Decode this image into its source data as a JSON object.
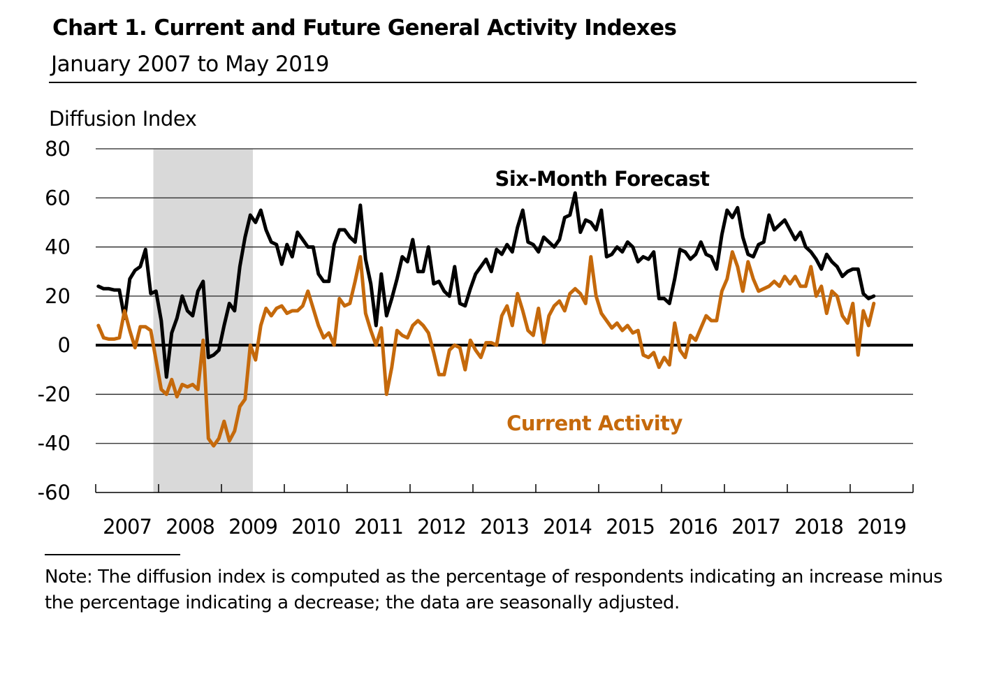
{
  "chart_data": {
    "type": "line",
    "title": "Chart 1. Current and Future General Activity Indexes",
    "subtitle": "January 2007 to May 2019",
    "ylabel": "Diffusion Index",
    "xlabel": "",
    "ylim": [
      -60,
      80
    ],
    "yticks": [
      "80",
      "60",
      "40",
      "20",
      "0",
      "-20",
      "-40",
      "-60"
    ],
    "ytick_values": [
      80,
      60,
      40,
      20,
      0,
      -20,
      -40,
      -60
    ],
    "xticks": [
      "2007",
      "2008",
      "2009",
      "2010",
      "2011",
      "2012",
      "2013",
      "2014",
      "2015",
      "2016",
      "2017",
      "2018",
      "2019"
    ],
    "x_start": "2007-01",
    "x_end": "2019-05",
    "frequency": "monthly",
    "grid": true,
    "zero_line": true,
    "recession_shading": {
      "start": "2007-12",
      "end": "2009-06",
      "color": "#d9d9d9"
    },
    "series": [
      {
        "name": "Six-Month Forecast",
        "color": "#000000",
        "values": [
          24,
          23,
          23,
          22.5,
          22.5,
          11,
          27,
          30.5,
          32,
          39,
          21,
          22,
          10,
          -13,
          5,
          11,
          20,
          14,
          12,
          22,
          26,
          -5,
          -4,
          -2,
          8,
          17,
          14,
          32,
          44,
          53,
          50,
          55,
          47,
          42,
          41,
          33,
          41,
          36,
          46,
          43,
          40,
          40,
          29,
          26,
          26,
          41,
          47,
          47,
          44,
          42,
          57,
          35,
          25,
          8,
          29,
          12,
          19,
          27,
          36,
          34,
          43,
          30,
          30,
          40,
          25,
          26,
          22,
          20,
          32,
          17,
          16,
          23,
          29,
          32,
          35,
          30,
          39,
          37,
          41,
          38,
          48,
          55,
          42,
          41,
          38,
          44,
          42,
          40,
          43,
          52,
          53,
          62,
          46,
          51,
          50,
          47,
          55,
          36,
          37,
          40,
          38,
          42,
          40,
          34,
          36,
          35,
          38,
          19,
          19,
          17,
          27,
          39,
          38,
          35,
          37,
          42,
          37,
          36,
          31,
          45,
          55,
          52,
          56,
          44,
          37,
          36,
          41,
          42,
          53,
          47,
          49,
          51,
          47,
          43,
          46,
          40,
          38,
          35,
          31,
          37,
          34,
          32,
          28,
          30,
          31,
          31,
          21,
          19,
          20
        ]
      },
      {
        "name": "Current Activity",
        "color": "#c5690b",
        "values": [
          8,
          3,
          2.5,
          2.5,
          3,
          14,
          6,
          -1,
          7.5,
          7.5,
          6,
          -6,
          -18,
          -20,
          -14,
          -21,
          -16,
          -17,
          -16,
          -18,
          2,
          -38,
          -41,
          -38,
          -31,
          -39,
          -35,
          -25,
          -22,
          0,
          -6,
          8,
          15,
          12,
          15,
          16,
          13,
          14,
          14,
          16,
          22,
          15,
          8,
          3,
          5,
          0,
          19,
          16,
          17,
          26,
          36,
          13,
          6,
          0,
          7,
          -20,
          -9,
          6,
          4,
          3,
          8,
          10,
          8,
          5,
          -3,
          -12,
          -12,
          -2,
          0,
          -1,
          -10,
          2,
          -2,
          -5,
          1,
          1,
          0,
          12,
          16,
          8,
          21,
          14,
          6,
          4,
          15,
          1,
          12,
          16,
          18,
          14,
          21,
          23,
          21,
          17,
          36,
          20,
          13,
          10,
          7,
          9,
          6,
          8,
          5,
          6,
          -4,
          -5,
          -3,
          -9,
          -5,
          -8,
          9,
          -2,
          -5,
          4,
          2,
          7,
          12,
          10,
          10,
          22,
          27,
          38,
          32,
          22,
          34,
          27,
          22,
          23,
          24,
          26,
          24,
          28,
          25,
          28,
          24,
          24,
          32,
          20,
          24,
          13,
          22,
          20,
          12,
          9,
          17,
          -4,
          14,
          8,
          17
        ]
      }
    ],
    "annotations": [
      {
        "text": "Six-Month Forecast",
        "series": "Six-Month Forecast",
        "color": "#000000"
      },
      {
        "text": "Current Activity",
        "series": "Current Activity",
        "color": "#c5690b"
      }
    ]
  },
  "note": "Note: The diffusion index is computed as the percentage of respondents indicating an increase minus the percentage indicating a decrease; the data are seasonally adjusted."
}
